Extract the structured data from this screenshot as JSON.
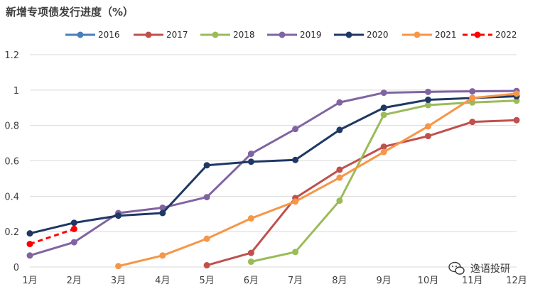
{
  "chart_data": {
    "type": "line",
    "title": "新增专项债发行进度（%）",
    "categories": [
      "1月",
      "2月",
      "3月",
      "4月",
      "5月",
      "6月",
      "7月",
      "8月",
      "9月",
      "10月",
      "11月",
      "12月"
    ],
    "ylim": [
      0,
      1.2
    ],
    "yticks": [
      "0",
      "0.2",
      "0.4",
      "0.6",
      "0.8",
      "1",
      "1.2"
    ],
    "grid": true,
    "legend_position": "top",
    "series": [
      {
        "name": "2016",
        "color": "#4a7ebb",
        "dashed": false,
        "values": [
          null,
          null,
          null,
          null,
          null,
          null,
          null,
          null,
          null,
          null,
          null,
          null
        ]
      },
      {
        "name": "2017",
        "color": "#c0504d",
        "dashed": false,
        "values": [
          null,
          null,
          null,
          null,
          0.01,
          0.08,
          0.39,
          0.55,
          0.68,
          0.74,
          0.82,
          0.83
        ]
      },
      {
        "name": "2018",
        "color": "#9bbb59",
        "dashed": false,
        "values": [
          null,
          null,
          null,
          null,
          null,
          0.03,
          0.085,
          0.375,
          0.86,
          0.915,
          0.93,
          0.94
        ]
      },
      {
        "name": "2019",
        "color": "#8064a2",
        "dashed": false,
        "values": [
          0.065,
          0.14,
          0.305,
          0.335,
          0.395,
          0.64,
          0.78,
          0.93,
          0.985,
          0.99,
          0.993,
          0.995
        ]
      },
      {
        "name": "2020",
        "color": "#1f3864",
        "dashed": false,
        "values": [
          0.19,
          0.25,
          0.29,
          0.305,
          0.575,
          0.595,
          0.605,
          0.775,
          0.9,
          0.945,
          0.955,
          0.965
        ]
      },
      {
        "name": "2021",
        "color": "#f79646",
        "dashed": false,
        "values": [
          null,
          null,
          0.005,
          0.065,
          0.16,
          0.275,
          0.37,
          0.505,
          0.65,
          0.795,
          0.955,
          0.98
        ]
      },
      {
        "name": "2022",
        "color": "#ff0000",
        "dashed": true,
        "values": [
          0.13,
          0.215,
          null,
          null,
          null,
          null,
          null,
          null,
          null,
          null,
          null,
          null
        ]
      }
    ]
  },
  "watermark": {
    "text": "逸语投研",
    "icon": "wechat-icon"
  }
}
